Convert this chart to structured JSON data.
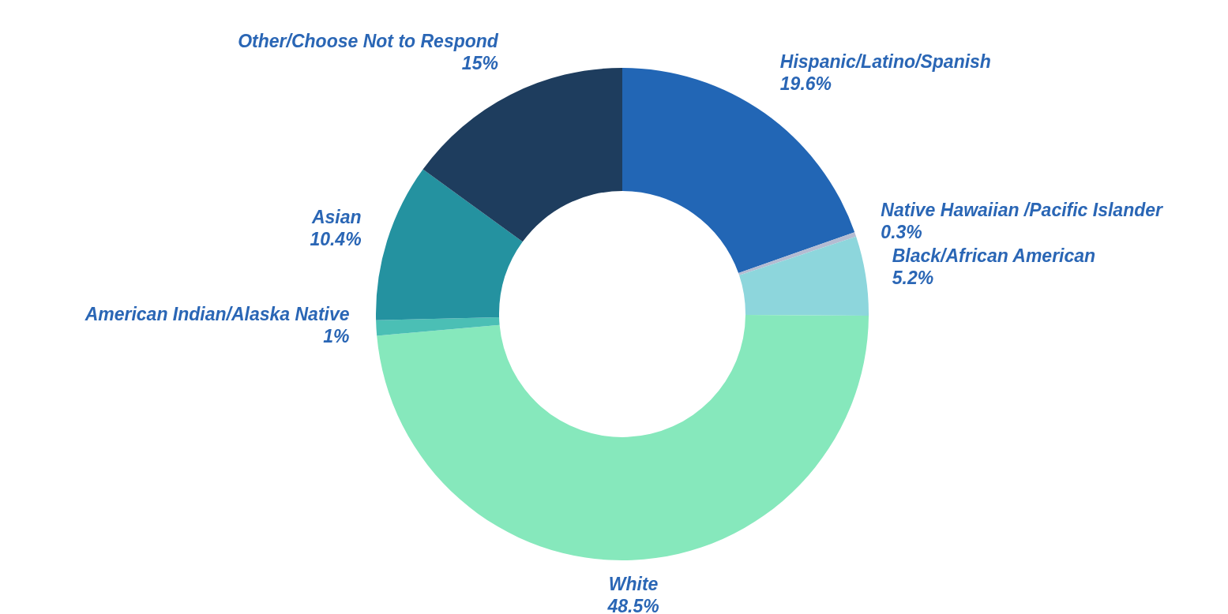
{
  "chart_data": {
    "type": "donut",
    "categories": [
      "Hispanic/Latino/Spanish",
      "Native Hawaiian /Pacific Islander",
      "Black/African American",
      "White",
      "American Indian/Alaska Native",
      "Asian",
      "Other/Choose Not to Respond"
    ],
    "values": [
      19.6,
      0.3,
      5.2,
      48.5,
      1,
      10.4,
      15
    ],
    "colors": [
      "#2266b5",
      "#b4bcd2",
      "#8dd6dc",
      "#86e8bc",
      "#4bbfb5",
      "#2492a0",
      "#1e3d5e"
    ],
    "value_labels": [
      "19.6%",
      "0.3%",
      "5.2%",
      "48.5%",
      "1%",
      "10.4%",
      "15%"
    ]
  }
}
